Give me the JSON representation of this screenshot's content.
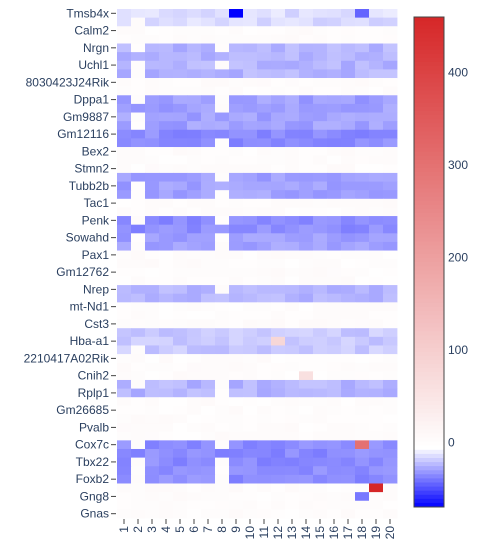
{
  "chart_data": {
    "type": "heatmap",
    "title": "",
    "xlabel": "",
    "ylabel": "",
    "x": [
      "1",
      "2",
      "3",
      "4",
      "5",
      "6",
      "7",
      "8",
      "9",
      "10",
      "11",
      "12",
      "13",
      "14",
      "15",
      "16",
      "17",
      "18",
      "19",
      "20"
    ],
    "y_labeled": [
      "Tmsb4x",
      "Calm2",
      "Nrgn",
      "Uchl1",
      "8030423J24Rik",
      "Dppa1",
      "Gm9887",
      "Gm12116",
      "Bex2",
      "Stmn2",
      "Tubb2b",
      "Tac1",
      "Penk",
      "Sowahd",
      "Pax1",
      "Gm12762",
      "Nrep",
      "mt-Nd1",
      "Cst3",
      "Hba-a1",
      "2210417A02Rik",
      "Cnih2",
      "Rplp1",
      "Gm26685",
      "Pvalb",
      "Cox7c",
      "Tbx22",
      "Foxb2",
      "Gng8",
      "Gnas"
    ],
    "rows_per_label": 2,
    "row_count": 59,
    "colorscale": [
      [
        0,
        "#0000ff"
      ],
      [
        0.12,
        "#ffffff"
      ],
      [
        1,
        "#d62728"
      ]
    ],
    "zmin": -70,
    "zmax": 460,
    "colorbar_ticks": [
      0,
      100,
      200,
      300,
      400
    ],
    "blocks": [
      {
        "rows": [
          0,
          2
        ],
        "cols": "all",
        "value": -15
      },
      {
        "rows": [
          4,
          8
        ],
        "cols": "all",
        "value": -25
      },
      {
        "rows": [
          10,
          14
        ],
        "cols": "all",
        "value": -30
      },
      {
        "rows": [
          14,
          16
        ],
        "cols": "all",
        "value": -35
      },
      {
        "rows": [
          19,
          22
        ],
        "cols": "all",
        "value": -30
      },
      {
        "rows": [
          24,
          26
        ],
        "cols": "all",
        "value": -35
      },
      {
        "rows": [
          26,
          28
        ],
        "cols": "all",
        "value": -30
      },
      {
        "rows": [
          32,
          34
        ],
        "cols": "all",
        "value": -25
      },
      {
        "rows": [
          37,
          40
        ],
        "cols": "all",
        "value": -20
      },
      {
        "rows": [
          43,
          45
        ],
        "cols": "all",
        "value": -25
      },
      {
        "rows": [
          50,
          55
        ],
        "cols": "all",
        "value": -35
      }
    ],
    "hotspots": [
      {
        "row": 0,
        "col": 8,
        "value": -70
      },
      {
        "row": 0,
        "col": 17,
        "value": -45
      },
      {
        "row": 38,
        "col": 11,
        "value": 80
      },
      {
        "row": 42,
        "col": 13,
        "value": 60
      },
      {
        "row": 50,
        "col": 17,
        "value": 300
      },
      {
        "row": 55,
        "col": 18,
        "value": 460
      },
      {
        "row": 56,
        "col": 17,
        "value": -40
      }
    ]
  }
}
